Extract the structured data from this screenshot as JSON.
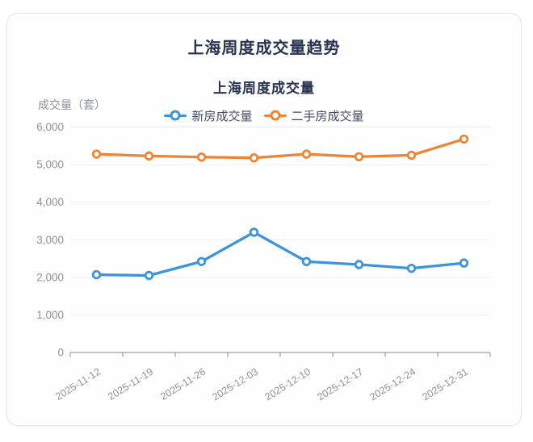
{
  "header": {
    "title": "上海周度成交量趋势"
  },
  "chart_data": {
    "type": "line",
    "title": "上海周度成交量",
    "ylabel": "成交量（套）",
    "xlabel": "",
    "x": [
      "2025-11-12",
      "2025-11-19",
      "2025-11-26",
      "2025-12-03",
      "2025-12-10",
      "2025-12-17",
      "2025-12-24",
      "2025-12-31"
    ],
    "series": [
      {
        "name": "新房成交量",
        "color": "#3c94da",
        "values": [
          2070,
          2050,
          2420,
          3200,
          2420,
          2340,
          2240,
          2380
        ]
      },
      {
        "name": "二手房成交量",
        "color": "#ee8536",
        "values": [
          5280,
          5230,
          5200,
          5180,
          5280,
          5210,
          5250,
          5680
        ]
      }
    ],
    "ylim": [
      0,
      6000
    ],
    "y_ticks": [
      0,
      1000,
      2000,
      3000,
      4000,
      5000,
      6000
    ],
    "grid": true,
    "legend_position": "top",
    "x_label_rotation_deg": -32,
    "axis_color": "#9aa0a6",
    "grid_color": "#eceef2",
    "tick_label_color": "#8d9299"
  }
}
